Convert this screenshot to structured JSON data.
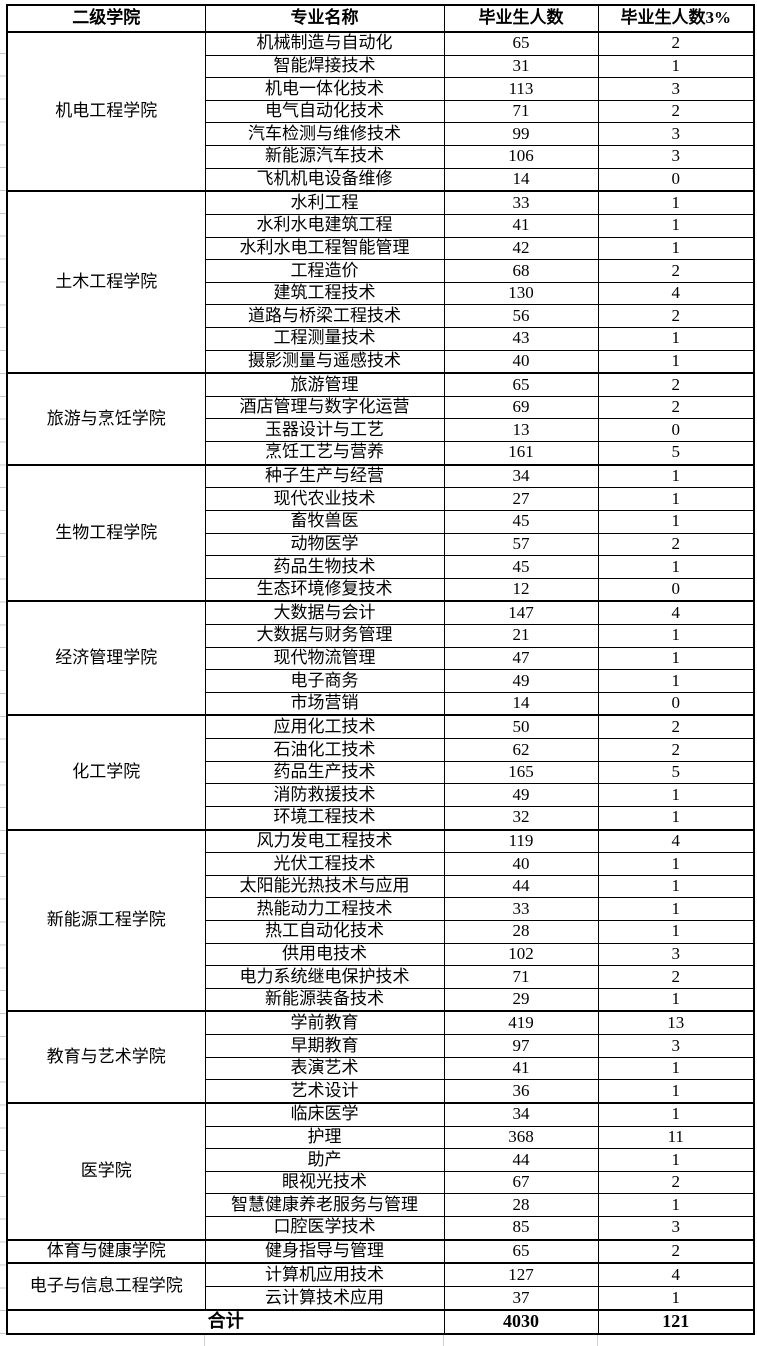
{
  "table": {
    "columns": [
      "二级学院",
      "专业名称",
      "毕业生人数",
      "毕业生人数3%"
    ],
    "groups": [
      {
        "college": "机电工程学院",
        "majors": [
          {
            "name": "机械制造与自动化",
            "graduates": 65,
            "pct3": 2
          },
          {
            "name": "智能焊接技术",
            "graduates": 31,
            "pct3": 1
          },
          {
            "name": "机电一体化技术",
            "graduates": 113,
            "pct3": 3
          },
          {
            "name": "电气自动化技术",
            "graduates": 71,
            "pct3": 2
          },
          {
            "name": "汽车检测与维修技术",
            "graduates": 99,
            "pct3": 3
          },
          {
            "name": "新能源汽车技术",
            "graduates": 106,
            "pct3": 3
          },
          {
            "name": "飞机机电设备维修",
            "graduates": 14,
            "pct3": 0
          }
        ]
      },
      {
        "college": "土木工程学院",
        "majors": [
          {
            "name": "水利工程",
            "graduates": 33,
            "pct3": 1
          },
          {
            "name": "水利水电建筑工程",
            "graduates": 41,
            "pct3": 1
          },
          {
            "name": "水利水电工程智能管理",
            "graduates": 42,
            "pct3": 1
          },
          {
            "name": "工程造价",
            "graduates": 68,
            "pct3": 2
          },
          {
            "name": "建筑工程技术",
            "graduates": 130,
            "pct3": 4
          },
          {
            "name": "道路与桥梁工程技术",
            "graduates": 56,
            "pct3": 2
          },
          {
            "name": "工程测量技术",
            "graduates": 43,
            "pct3": 1
          },
          {
            "name": "摄影测量与遥感技术",
            "graduates": 40,
            "pct3": 1
          }
        ]
      },
      {
        "college": "旅游与烹饪学院",
        "majors": [
          {
            "name": "旅游管理",
            "graduates": 65,
            "pct3": 2
          },
          {
            "name": "酒店管理与数字化运营",
            "graduates": 69,
            "pct3": 2
          },
          {
            "name": "玉器设计与工艺",
            "graduates": 13,
            "pct3": 0
          },
          {
            "name": "烹饪工艺与营养",
            "graduates": 161,
            "pct3": 5
          }
        ]
      },
      {
        "college": "生物工程学院",
        "majors": [
          {
            "name": "种子生产与经营",
            "graduates": 34,
            "pct3": 1
          },
          {
            "name": "现代农业技术",
            "graduates": 27,
            "pct3": 1
          },
          {
            "name": "畜牧兽医",
            "graduates": 45,
            "pct3": 1
          },
          {
            "name": "动物医学",
            "graduates": 57,
            "pct3": 2
          },
          {
            "name": "药品生物技术",
            "graduates": 45,
            "pct3": 1
          },
          {
            "name": "生态环境修复技术",
            "graduates": 12,
            "pct3": 0
          }
        ]
      },
      {
        "college": "经济管理学院",
        "majors": [
          {
            "name": "大数据与会计",
            "graduates": 147,
            "pct3": 4
          },
          {
            "name": "大数据与财务管理",
            "graduates": 21,
            "pct3": 1
          },
          {
            "name": "现代物流管理",
            "graduates": 47,
            "pct3": 1
          },
          {
            "name": "电子商务",
            "graduates": 49,
            "pct3": 1
          },
          {
            "name": "市场营销",
            "graduates": 14,
            "pct3": 0
          }
        ]
      },
      {
        "college": "化工学院",
        "majors": [
          {
            "name": "应用化工技术",
            "graduates": 50,
            "pct3": 2
          },
          {
            "name": "石油化工技术",
            "graduates": 62,
            "pct3": 2
          },
          {
            "name": "药品生产技术",
            "graduates": 165,
            "pct3": 5
          },
          {
            "name": "消防救援技术",
            "graduates": 49,
            "pct3": 1
          },
          {
            "name": "环境工程技术",
            "graduates": 32,
            "pct3": 1
          }
        ]
      },
      {
        "college": "新能源工程学院",
        "majors": [
          {
            "name": "风力发电工程技术",
            "graduates": 119,
            "pct3": 4
          },
          {
            "name": "光伏工程技术",
            "graduates": 40,
            "pct3": 1
          },
          {
            "name": "太阳能光热技术与应用",
            "graduates": 44,
            "pct3": 1
          },
          {
            "name": "热能动力工程技术",
            "graduates": 33,
            "pct3": 1
          },
          {
            "name": "热工自动化技术",
            "graduates": 28,
            "pct3": 1
          },
          {
            "name": "供用电技术",
            "graduates": 102,
            "pct3": 3
          },
          {
            "name": "电力系统继电保护技术",
            "graduates": 71,
            "pct3": 2
          },
          {
            "name": "新能源装备技术",
            "graduates": 29,
            "pct3": 1
          }
        ]
      },
      {
        "college": "教育与艺术学院",
        "majors": [
          {
            "name": "学前教育",
            "graduates": 419,
            "pct3": 13
          },
          {
            "name": "早期教育",
            "graduates": 97,
            "pct3": 3
          },
          {
            "name": "表演艺术",
            "graduates": 41,
            "pct3": 1
          },
          {
            "name": "艺术设计",
            "graduates": 36,
            "pct3": 1
          }
        ]
      },
      {
        "college": "医学院",
        "majors": [
          {
            "name": "临床医学",
            "graduates": 34,
            "pct3": 1
          },
          {
            "name": "护理",
            "graduates": 368,
            "pct3": 11
          },
          {
            "name": "助产",
            "graduates": 44,
            "pct3": 1
          },
          {
            "name": "眼视光技术",
            "graduates": 67,
            "pct3": 2
          },
          {
            "name": "智慧健康养老服务与管理",
            "graduates": 28,
            "pct3": 1
          },
          {
            "name": "口腔医学技术",
            "graduates": 85,
            "pct3": 3
          }
        ]
      },
      {
        "college": "体育与健康学院",
        "majors": [
          {
            "name": "健身指导与管理",
            "graduates": 65,
            "pct3": 2
          }
        ]
      },
      {
        "college": "电子与信息工程学院",
        "majors": [
          {
            "name": "计算机应用技术",
            "graduates": 127,
            "pct3": 4
          },
          {
            "name": "云计算技术应用",
            "graduates": 37,
            "pct3": 1
          }
        ]
      }
    ],
    "total": {
      "label": "合计",
      "graduates": 4030,
      "pct3": 121
    }
  },
  "colors": {
    "border": "#000000",
    "text": "#000000",
    "background": "#ffffff",
    "gridline_artifact": "#c9c9c9"
  }
}
